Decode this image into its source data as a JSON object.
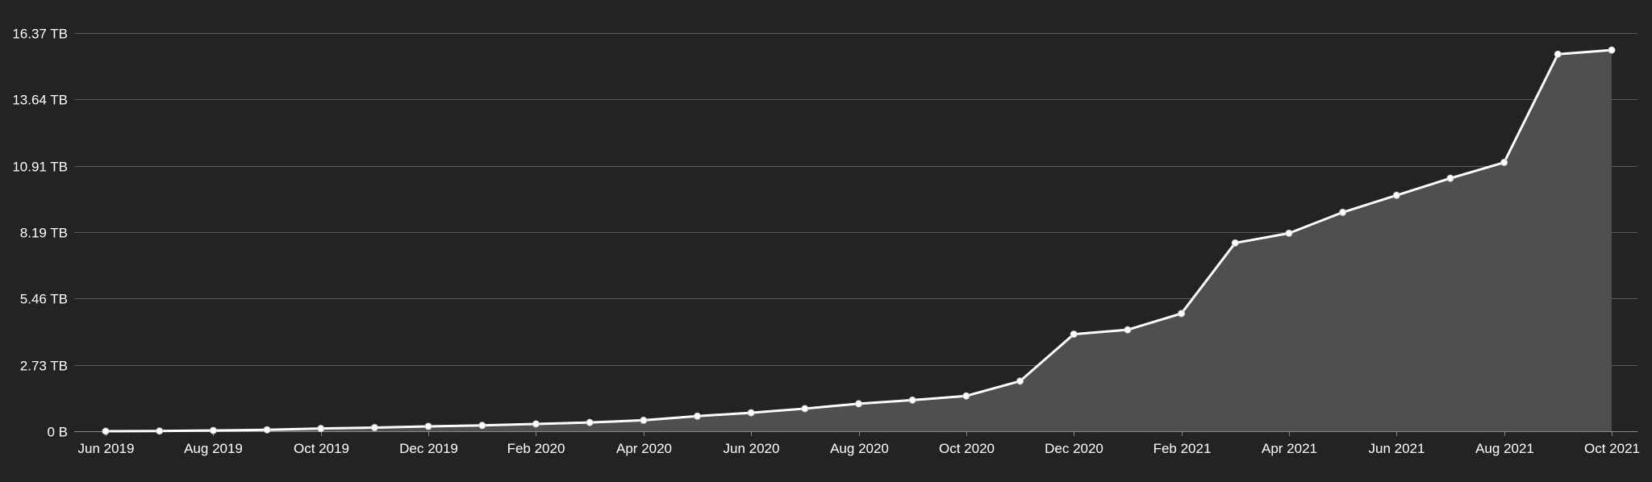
{
  "colors": {
    "background": "#232323",
    "grid": "#5a5a5a",
    "axis": "#8a8a8a",
    "line": "#ffffff",
    "area": "#4f4f4f",
    "text": "#ffffff"
  },
  "chart_data": {
    "type": "area",
    "title": "",
    "xlabel": "",
    "ylabel": "",
    "grid": true,
    "legend": "none",
    "y_unit": "TB",
    "ylim": [
      0,
      16.37
    ],
    "y_ticks": [
      {
        "value": 0,
        "label": "0 B"
      },
      {
        "value": 2.73,
        "label": "2.73 TB"
      },
      {
        "value": 5.46,
        "label": "5.46 TB"
      },
      {
        "value": 8.19,
        "label": "8.19 TB"
      },
      {
        "value": 10.91,
        "label": "10.91 TB"
      },
      {
        "value": 13.64,
        "label": "13.64 TB"
      },
      {
        "value": 16.37,
        "label": "16.37 TB"
      }
    ],
    "x_ticks": [
      {
        "x": "2019-06",
        "label": "Jun 2019"
      },
      {
        "x": "2019-08",
        "label": "Aug 2019"
      },
      {
        "x": "2019-10",
        "label": "Oct 2019"
      },
      {
        "x": "2019-12",
        "label": "Dec 2019"
      },
      {
        "x": "2020-02",
        "label": "Feb 2020"
      },
      {
        "x": "2020-04",
        "label": "Apr 2020"
      },
      {
        "x": "2020-06",
        "label": "Jun 2020"
      },
      {
        "x": "2020-08",
        "label": "Aug 2020"
      },
      {
        "x": "2020-10",
        "label": "Oct 2020"
      },
      {
        "x": "2020-12",
        "label": "Dec 2020"
      },
      {
        "x": "2021-02",
        "label": "Feb 2021"
      },
      {
        "x": "2021-04",
        "label": "Apr 2021"
      },
      {
        "x": "2021-06",
        "label": "Jun 2021"
      },
      {
        "x": "2021-08",
        "label": "Aug 2021"
      },
      {
        "x": "2021-10",
        "label": "Oct 2021"
      }
    ],
    "series": [
      {
        "x": [
          "2019-06",
          "2019-07",
          "2019-08",
          "2019-09",
          "2019-10",
          "2019-11",
          "2019-12",
          "2020-01",
          "2020-02",
          "2020-03",
          "2020-04",
          "2020-05",
          "2020-06",
          "2020-07",
          "2020-08",
          "2020-09",
          "2020-10",
          "2020-11",
          "2020-12",
          "2021-01",
          "2021-02",
          "2021-03",
          "2021-04",
          "2021-05",
          "2021-06",
          "2021-07",
          "2021-08",
          "2021-09",
          "2021-10"
        ],
        "values": [
          0.0,
          0.01,
          0.03,
          0.06,
          0.11,
          0.15,
          0.2,
          0.24,
          0.3,
          0.36,
          0.45,
          0.62,
          0.76,
          0.93,
          1.13,
          1.28,
          1.45,
          2.06,
          3.99,
          4.17,
          4.84,
          7.74,
          8.14,
          9.0,
          9.7,
          10.4,
          11.05,
          15.5,
          15.67
        ]
      }
    ]
  }
}
